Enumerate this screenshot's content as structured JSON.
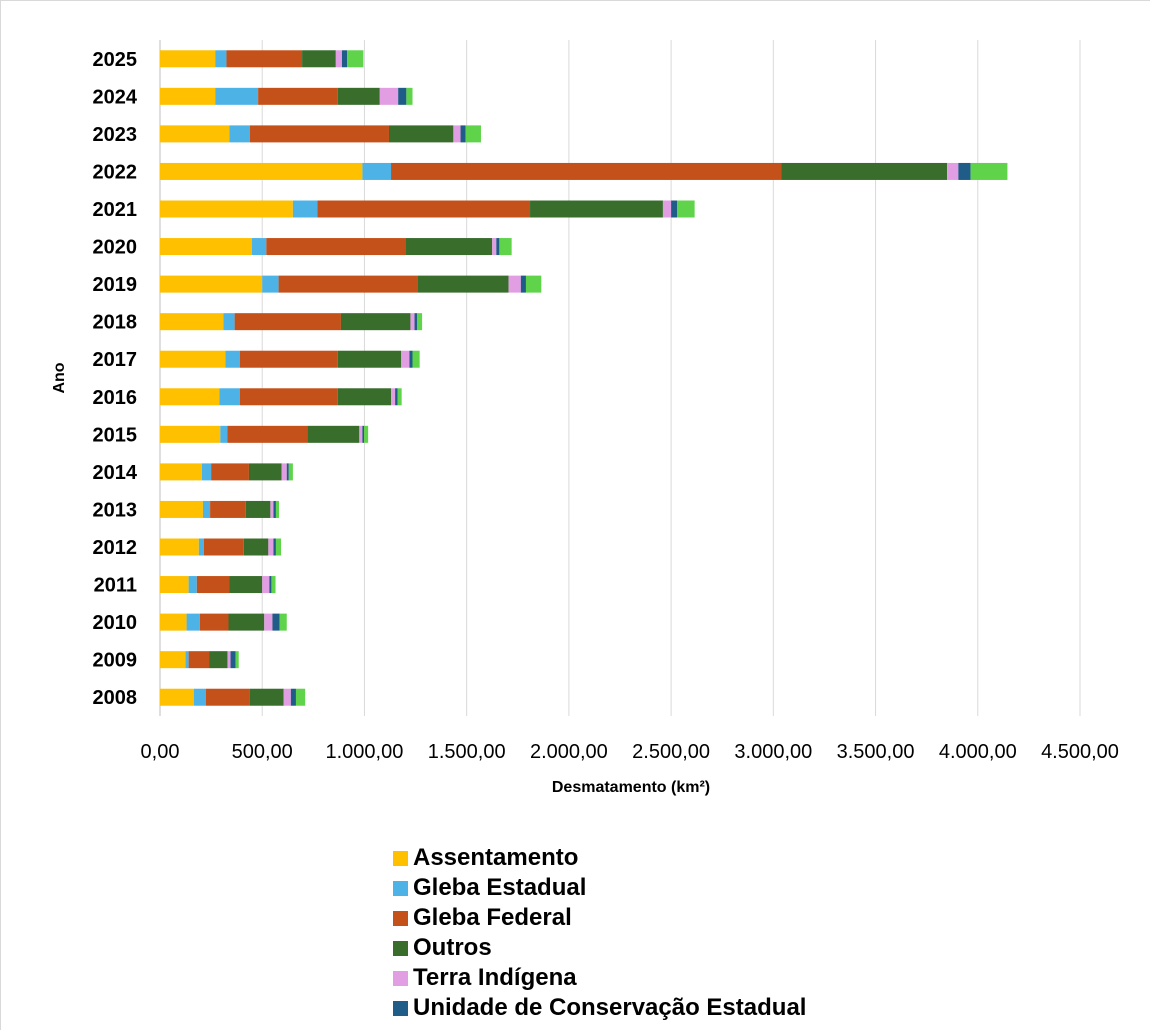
{
  "chart_data": {
    "type": "bar",
    "orientation": "horizontal",
    "stacked": true,
    "xlabel": "Desmatamento (km²)",
    "ylabel": "Ano",
    "xlim": [
      0,
      4500
    ],
    "x_ticks": [
      "0,00",
      "500,00",
      "1.000,00",
      "1.500,00",
      "2.000,00",
      "2.500,00",
      "3.000,00",
      "3.500,00",
      "4.000,00",
      "4.500,00"
    ],
    "grid": "vertical",
    "legend_position": "bottom",
    "categories": [
      "2025",
      "2024",
      "2023",
      "2022",
      "2021",
      "2020",
      "2019",
      "2018",
      "2017",
      "2016",
      "2015",
      "2014",
      "2013",
      "2012",
      "2011",
      "2010",
      "2009",
      "2008"
    ],
    "series": [
      {
        "name": "Assentamento",
        "color": "#ffc000",
        "values": [
          270,
          270,
          340,
          990,
          650,
          450,
          500,
          310,
          320,
          290,
          295,
          205,
          210,
          190,
          140,
          130,
          125,
          165
        ]
      },
      {
        "name": "Gleba Estadual",
        "color": "#4db3e6",
        "values": [
          55,
          210,
          100,
          140,
          120,
          70,
          80,
          55,
          70,
          100,
          35,
          45,
          35,
          25,
          40,
          65,
          15,
          60
        ]
      },
      {
        "name": "Gleba Federal",
        "color": "#c5511a",
        "values": [
          370,
          390,
          680,
          1910,
          1040,
          680,
          680,
          520,
          480,
          480,
          390,
          185,
          175,
          195,
          160,
          140,
          100,
          215
        ]
      },
      {
        "name": "Outros",
        "color": "#386d2c",
        "values": [
          165,
          205,
          315,
          810,
          650,
          425,
          445,
          340,
          310,
          260,
          255,
          160,
          120,
          120,
          160,
          175,
          90,
          165
        ]
      },
      {
        "name": "Terra Indígena",
        "color": "#e29ee2",
        "values": [
          30,
          90,
          35,
          55,
          40,
          20,
          60,
          20,
          40,
          20,
          15,
          25,
          15,
          25,
          35,
          40,
          15,
          35
        ]
      },
      {
        "name": "Unidade de Conservação Estadual",
        "color": "#1f5c87",
        "values": [
          25,
          40,
          25,
          60,
          30,
          15,
          25,
          12,
          15,
          12,
          8,
          10,
          12,
          12,
          10,
          35,
          25,
          25
        ]
      },
      {
        "color": "#5fd34a",
        "values": [
          80,
          30,
          75,
          180,
          85,
          60,
          75,
          25,
          35,
          20,
          20,
          20,
          15,
          25,
          20,
          35,
          15,
          45
        ]
      }
    ]
  }
}
